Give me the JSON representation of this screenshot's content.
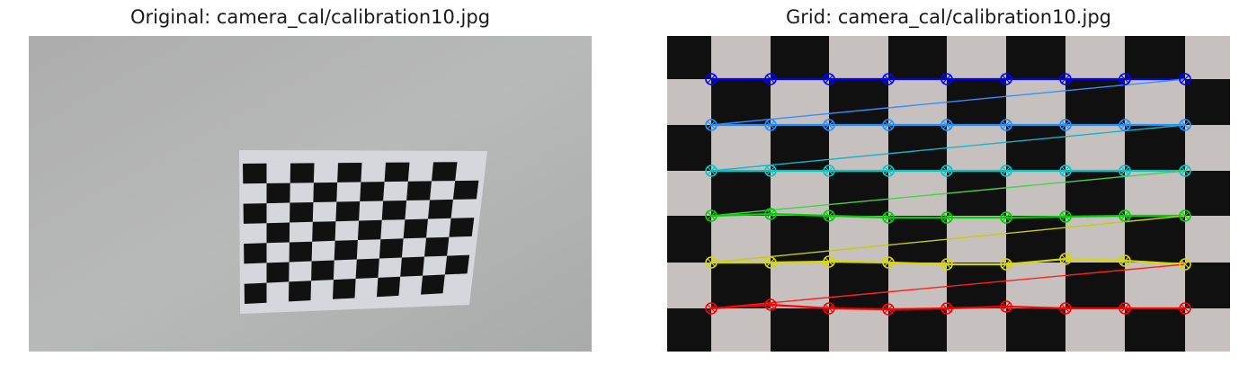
{
  "figure": {
    "left_title": "Original: camera_cal/calibration10.jpg",
    "right_title": "Grid: camera_cal/calibration10.jpg"
  },
  "left_image": {
    "subject": "checkerboard-pattern-on-wall",
    "wall_color": "#b3b4b4",
    "paper_color": "#d6d7dd",
    "square_color": "#111111"
  },
  "right_image": {
    "subject": "undistorted-checkerboard-with-detected-corners",
    "light_square_color": "#c6c1bf",
    "dark_square_color": "#101010",
    "grid_rows": 6,
    "grid_cols": 9,
    "row_colors": [
      "#0000ff",
      "#1e90ff",
      "#00c8c8",
      "#00d000",
      "#d8d800",
      "#ff0000"
    ],
    "connector_colors": [
      "#3a8cff",
      "#16b4c8",
      "#48d048",
      "#c4cc10",
      "#ff2020"
    ]
  }
}
